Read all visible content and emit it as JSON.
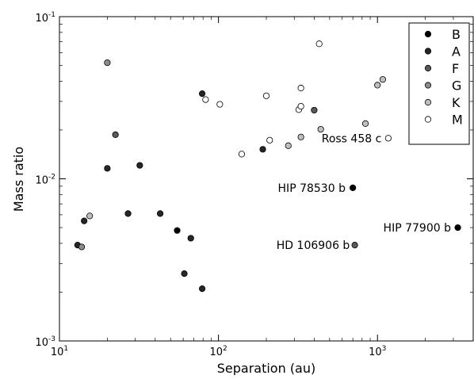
{
  "chart_data": {
    "type": "scatter",
    "xlabel": "Separation (au)",
    "ylabel": "Mass ratio",
    "x_scale": "log",
    "y_scale": "log",
    "xlim": [
      10,
      4000
    ],
    "ylim": [
      0.001,
      0.1
    ],
    "x_ticks": [
      10,
      100,
      1000
    ],
    "x_tick_labels": [
      [
        "10",
        "1"
      ],
      [
        "10",
        "2"
      ],
      [
        "10",
        "3"
      ]
    ],
    "y_ticks": [
      0.001,
      0.01,
      0.1
    ],
    "y_tick_labels": [
      [
        "10",
        "-3"
      ],
      [
        "10",
        "-2"
      ],
      [
        "10",
        "-1"
      ]
    ],
    "grid": false,
    "legend_position": "top-right",
    "series": [
      {
        "name": "B",
        "color": "#000000",
        "edge": "#000000",
        "points": [
          [
            55,
            0.0048
          ],
          [
            700,
            0.0088
          ],
          [
            3200,
            0.005
          ]
        ]
      },
      {
        "name": "A",
        "color": "#262626",
        "edge": "#000000",
        "points": [
          [
            13,
            0.0039
          ],
          [
            14.3,
            0.0055
          ],
          [
            20,
            0.0116
          ],
          [
            27,
            0.0061
          ],
          [
            32,
            0.0121
          ],
          [
            43,
            0.0061
          ],
          [
            61,
            0.0026
          ],
          [
            67,
            0.0043
          ],
          [
            79,
            0.0021
          ],
          [
            79,
            0.0335
          ],
          [
            190,
            0.0152
          ]
        ]
      },
      {
        "name": "F",
        "color": "#595959",
        "edge": "#000000",
        "points": [
          [
            22.5,
            0.0187
          ],
          [
            400,
            0.0265
          ],
          [
            720,
            0.0039
          ]
        ]
      },
      {
        "name": "G",
        "color": "#8c8c8c",
        "edge": "#000000",
        "points": [
          [
            13.8,
            0.0038
          ],
          [
            20,
            0.052
          ]
        ]
      },
      {
        "name": "K",
        "color": "#bfbfbf",
        "edge": "#000000",
        "points": [
          [
            15.5,
            0.0059
          ],
          [
            275,
            0.016
          ],
          [
            330,
            0.0181
          ],
          [
            440,
            0.0202
          ],
          [
            840,
            0.0219
          ],
          [
            1000,
            0.0378
          ],
          [
            1080,
            0.041
          ]
        ]
      },
      {
        "name": "M",
        "color": "#ffffff",
        "edge": "#000000",
        "points": [
          [
            83,
            0.0308
          ],
          [
            102,
            0.0288
          ],
          [
            140,
            0.0142
          ],
          [
            200,
            0.0325
          ],
          [
            210,
            0.0173
          ],
          [
            320,
            0.0267
          ],
          [
            330,
            0.028
          ],
          [
            330,
            0.0363
          ],
          [
            430,
            0.068
          ],
          [
            1170,
            0.0178
          ]
        ]
      }
    ],
    "annotations": [
      {
        "text": "Ross 458 c",
        "x": 1060,
        "y": 0.0178
      },
      {
        "text": "HIP 78530 b",
        "x": 630,
        "y": 0.0088
      },
      {
        "text": "HIP 77900 b",
        "x": 2900,
        "y": 0.005
      },
      {
        "text": "HD 106906 b",
        "x": 670,
        "y": 0.0039
      }
    ]
  }
}
